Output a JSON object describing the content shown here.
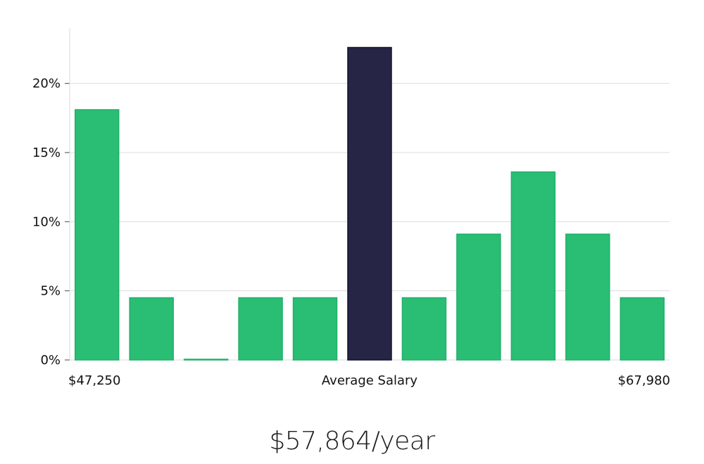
{
  "chart_data": {
    "type": "bar",
    "title": "",
    "xlabel": "Average Salary",
    "ylabel": "",
    "x_min_label": "$47,250",
    "x_max_label": "$67,980",
    "ylim": [
      0,
      24
    ],
    "y_ticks": [
      0,
      5,
      10,
      15,
      20
    ],
    "y_tick_labels": [
      "0%",
      "5%",
      "10%",
      "15%",
      "20%"
    ],
    "grid": true,
    "values": [
      18.1,
      4.5,
      0.05,
      4.5,
      4.5,
      22.6,
      4.5,
      9.1,
      13.6,
      9.1,
      4.5
    ],
    "highlight_index": 5,
    "bar_color": "#2abd74",
    "bar_stroke": "#22b06a",
    "highlight_color": "#272545",
    "highlight_stroke": "#141230",
    "grid_color": "#dcdcdc",
    "axis_color": "#d9d9d9"
  },
  "footer": {
    "salary_text": "$57,864/year"
  }
}
